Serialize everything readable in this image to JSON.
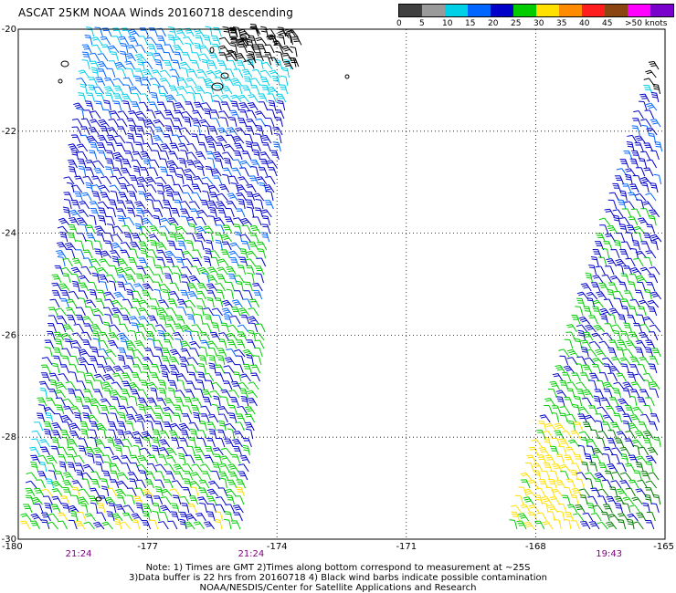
{
  "title": "ASCAT 25KM NOAA Winds 20160718 descending",
  "legend": {
    "bins": [
      {
        "label": "0",
        "color": "#404040"
      },
      {
        "label": "5",
        "color": "#9a9a9a"
      },
      {
        "label": "10",
        "color": "#00cfe8"
      },
      {
        "label": "15",
        "color": "#0066ff"
      },
      {
        "label": "20",
        "color": "#0000c8"
      },
      {
        "label": "25",
        "color": "#00cc00"
      },
      {
        "label": "30",
        "color": "#ffe000"
      },
      {
        "label": "35",
        "color": "#ff8c00"
      },
      {
        "label": "40",
        "color": "#ff1e1e"
      },
      {
        "label": "45",
        "color": "#8b4513"
      },
      {
        "label": ">50 knots",
        "color": "#ff00ff"
      },
      {
        "label": "",
        "color": "#7a00cc"
      }
    ]
  },
  "map": {
    "lat_ticks": [
      "-20",
      "-22",
      "-24",
      "-26",
      "-28",
      "-30"
    ],
    "lon_ticks": [
      "-180",
      "-177",
      "-174",
      "-171",
      "-168",
      "-165"
    ],
    "lon_range": [
      -180,
      -165
    ],
    "lat_range": [
      -20,
      -30
    ],
    "grid": "dotted",
    "times": [
      {
        "label": "21:24",
        "lon": -178.6
      },
      {
        "label": "21:24",
        "lon": -174.6
      },
      {
        "label": "19:43",
        "lon": -166.3
      }
    ],
    "icons": {
      "barb": "wind-barb-icon",
      "land": "island-outline-icon"
    }
  },
  "notes": {
    "line1": "Note: 1) Times are GMT 2)Times along bottom correspond to measurement at ~25S",
    "line2": "3)Data buffer is 22 hrs from 20160718 4) Black wind barbs indicate possible contamination",
    "line3": "NOAA/NESDIS/Center for Satellite Applications and Research"
  }
}
